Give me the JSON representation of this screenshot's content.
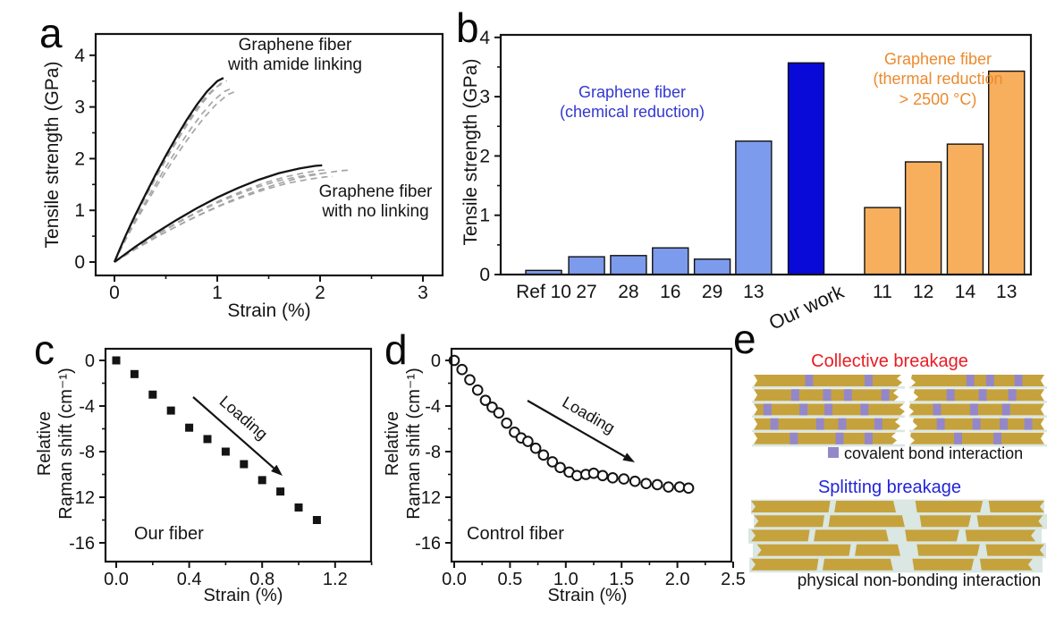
{
  "panels": {
    "a": "a",
    "b": "b",
    "c": "c",
    "d": "d",
    "e": "e"
  },
  "colors": {
    "light_blue": "#7D9BEC",
    "dark_blue": "#0909D8",
    "orange_bar": "#F8AF5D",
    "blue_text": "#3338CE",
    "orange_text": "#EC8A2E",
    "red_text": "#EA1B22",
    "blue_title": "#2224D8",
    "tan": "#C6A23D",
    "purple": "#9487C9",
    "mortar": "#DAE7E2",
    "dash_gray": "#A6A6A6",
    "axis": "#141414"
  },
  "chart_data": [
    {
      "id": "a",
      "type": "line",
      "xlabel": "Strain (%)",
      "ylabel": "Tensile strength (GPa)",
      "xlim": [
        -0.18,
        3.19
      ],
      "ylim": [
        -0.26,
        4.41
      ],
      "xticks": [
        0,
        1,
        2,
        3
      ],
      "xtick_labels": [
        "0",
        "1",
        "2",
        "3"
      ],
      "xminor": [
        0.5,
        1.5,
        2.5
      ],
      "yticks": [
        0,
        1,
        2,
        3,
        4
      ],
      "ytick_labels": [
        "0",
        "1",
        "2",
        "3",
        "4"
      ],
      "yminor": [
        0.5,
        1.5,
        2.5,
        3.5
      ],
      "series": [
        {
          "name": "Graphene fiber with amide linking",
          "points": [
            [
              0,
              0
            ],
            [
              0.05,
              0.24
            ],
            [
              0.1,
              0.47
            ],
            [
              0.15,
              0.69
            ],
            [
              0.2,
              0.9
            ],
            [
              0.3,
              1.3
            ],
            [
              0.4,
              1.69
            ],
            [
              0.5,
              2.06
            ],
            [
              0.6,
              2.41
            ],
            [
              0.7,
              2.74
            ],
            [
              0.8,
              3.04
            ],
            [
              0.9,
              3.3
            ],
            [
              1.0,
              3.5
            ],
            [
              1.06,
              3.56
            ]
          ],
          "replicates": [
            [
              0.98,
              0.965
            ],
            [
              1.03,
              0.985
            ],
            [
              1.06,
              0.94
            ],
            [
              1.1,
              0.925
            ]
          ]
        },
        {
          "name": "Graphene fiber with no linking",
          "points": [
            [
              0,
              0
            ],
            [
              0.2,
              0.29
            ],
            [
              0.4,
              0.56
            ],
            [
              0.6,
              0.81
            ],
            [
              0.8,
              1.04
            ],
            [
              1.0,
              1.25
            ],
            [
              1.2,
              1.43
            ],
            [
              1.4,
              1.59
            ],
            [
              1.6,
              1.72
            ],
            [
              1.8,
              1.81
            ],
            [
              1.95,
              1.86
            ],
            [
              2.02,
              1.87
            ]
          ],
          "replicates": [
            [
              1.03,
              0.955
            ],
            [
              1.0,
              0.915
            ],
            [
              1.05,
              0.885
            ],
            [
              1.13,
              0.95
            ]
          ]
        }
      ],
      "annotations": {
        "amide": "Graphene fiber\nwith amide linking",
        "nolink": "Graphene fiber\nwith no linking"
      }
    },
    {
      "id": "b",
      "type": "bar",
      "ylabel": "Tensile strength (GPa)",
      "ylim": [
        0,
        4.04
      ],
      "categories": [
        "Ref 10",
        "27",
        "28",
        "16",
        "29",
        "13",
        "Our work",
        "11",
        "12",
        "14",
        "13"
      ],
      "values": [
        0.07,
        0.3,
        0.32,
        0.45,
        0.26,
        2.25,
        3.57,
        1.13,
        1.9,
        2.2,
        3.43
      ],
      "groups": [
        "chemical",
        "chemical",
        "chemical",
        "chemical",
        "chemical",
        "chemical",
        "ourwork",
        "thermal",
        "thermal",
        "thermal",
        "thermal"
      ],
      "positions": [
        0.081,
        0.162,
        0.241,
        0.32,
        0.399,
        0.477,
        0.576,
        0.72,
        0.797,
        0.876,
        0.954
      ],
      "yticks": [
        0,
        1,
        2,
        3,
        4
      ],
      "ytick_labels": [
        "0",
        "1",
        "2",
        "3",
        "4"
      ],
      "yminor": [
        0.5,
        1.5,
        2.5,
        3.5
      ],
      "rotated_category": "Our work",
      "annotations": {
        "chemical": "Graphene fiber\n(chemical reduction)",
        "thermal": "Graphene fiber\n(thermal reduction\n> 2500 °C)"
      }
    },
    {
      "id": "c",
      "type": "scatter",
      "marker": "square",
      "xlabel": "Strain (%)",
      "ylabel": "Relative\nRaman shift (cm⁻¹)",
      "xlim": [
        -0.06,
        1.45
      ],
      "ylim": [
        -17.6,
        1.0
      ],
      "xticks": [
        0,
        0.4,
        0.8,
        1.2
      ],
      "xtick_labels": [
        "0.0",
        "0.4",
        "0.8",
        "1.2"
      ],
      "xminor": [
        0.2,
        0.6,
        1.0,
        1.4
      ],
      "yticks": [
        0,
        -4,
        -8,
        -12,
        -16
      ],
      "ytick_labels": [
        "0",
        "-4",
        "-8",
        "-12",
        "-16"
      ],
      "yminor": [
        -2,
        -6,
        -10,
        -14
      ],
      "points": [
        [
          0,
          0
        ],
        [
          0.1,
          -1.2
        ],
        [
          0.2,
          -3.0
        ],
        [
          0.3,
          -4.4
        ],
        [
          0.4,
          -5.9
        ],
        [
          0.5,
          -6.9
        ],
        [
          0.6,
          -8.0
        ],
        [
          0.7,
          -9.1
        ],
        [
          0.8,
          -10.5
        ],
        [
          0.9,
          -11.5
        ],
        [
          1.0,
          -12.9
        ],
        [
          1.1,
          -14.0
        ]
      ],
      "annotations": {
        "label": "Our fiber",
        "loading": "Loading"
      }
    },
    {
      "id": "d",
      "type": "scatter",
      "marker": "circle",
      "xlabel": "Strain (%)",
      "ylabel": "Relative\nRaman shift (cm⁻¹)",
      "xlim": [
        -0.03,
        2.48
      ],
      "ylim": [
        -17.6,
        1.0
      ],
      "xticks": [
        0,
        0.5,
        1.0,
        1.5,
        2.0,
        2.5
      ],
      "xtick_labels": [
        "0.0",
        "0.5",
        "1.0",
        "1.5",
        "2.0",
        "2.5"
      ],
      "xminor": [
        0.25,
        0.75,
        1.25,
        1.75,
        2.25
      ],
      "yticks": [
        0,
        -4,
        -8,
        -12,
        -16
      ],
      "ytick_labels": [
        "0",
        "-4",
        "-8",
        "-12",
        "-16"
      ],
      "yminor": [
        -2,
        -6,
        -10,
        -14
      ],
      "points": [
        [
          0,
          0
        ],
        [
          0.07,
          -0.8
        ],
        [
          0.14,
          -1.7
        ],
        [
          0.21,
          -2.6
        ],
        [
          0.28,
          -3.5
        ],
        [
          0.34,
          -4.1
        ],
        [
          0.4,
          -4.6
        ],
        [
          0.47,
          -5.5
        ],
        [
          0.54,
          -6.3
        ],
        [
          0.6,
          -6.8
        ],
        [
          0.66,
          -7.1
        ],
        [
          0.73,
          -7.7
        ],
        [
          0.8,
          -8.3
        ],
        [
          0.88,
          -8.9
        ],
        [
          0.95,
          -9.4
        ],
        [
          1.03,
          -9.8
        ],
        [
          1.1,
          -10.1
        ],
        [
          1.18,
          -10.0
        ],
        [
          1.25,
          -9.9
        ],
        [
          1.33,
          -10.1
        ],
        [
          1.42,
          -10.3
        ],
        [
          1.52,
          -10.4
        ],
        [
          1.62,
          -10.6
        ],
        [
          1.72,
          -10.8
        ],
        [
          1.82,
          -10.9
        ],
        [
          1.92,
          -11.1
        ],
        [
          2.02,
          -11.1
        ],
        [
          2.1,
          -11.2
        ]
      ],
      "annotations": {
        "label": "Control fiber",
        "loading": "Loading"
      }
    }
  ],
  "panel_e": {
    "title_collective": "Collective breakage",
    "legend_text": "covalent bond interaction",
    "title_splitting": "Splitting breakage",
    "caption": "physical non-bonding interaction",
    "collective": {
      "left_purple": [
        [
          0.37,
          0.8
        ],
        [
          0.27,
          0.5,
          0.65,
          0.92
        ],
        [
          0.07,
          0.33,
          0.51,
          0.77
        ],
        [
          0.12,
          0.45,
          0.61,
          0.87
        ],
        [
          0.26,
          0.59,
          0.8
        ]
      ],
      "right_purple": [
        [
          0.44,
          0.6,
          0.83
        ],
        [
          0.28,
          0.54,
          0.78
        ],
        [
          0.17,
          0.47,
          0.73
        ],
        [
          0.2,
          0.49,
          0.71,
          0.91
        ],
        [
          0.34,
          0.66
        ]
      ]
    },
    "splitting": {
      "rows": [
        [
          [
            0.0,
            0.27
          ],
          [
            0.29,
            0.485
          ],
          [
            0.56,
            0.79
          ],
          [
            0.81,
            1.0
          ]
        ],
        [
          [
            0.01,
            0.25
          ],
          [
            0.27,
            0.515
          ],
          [
            0.575,
            0.75
          ],
          [
            0.77,
            0.995
          ]
        ],
        [
          [
            0.0,
            0.2
          ],
          [
            0.22,
            0.46
          ],
          [
            0.525,
            0.71
          ],
          [
            0.73,
            0.97
          ]
        ],
        [
          [
            0.02,
            0.34
          ],
          [
            0.36,
            0.5
          ],
          [
            0.565,
            0.78
          ],
          [
            0.8,
            1.0
          ]
        ],
        [
          [
            0.0,
            0.23
          ],
          [
            0.25,
            0.475
          ],
          [
            0.55,
            0.76
          ],
          [
            0.78,
            0.96
          ]
        ]
      ]
    }
  }
}
